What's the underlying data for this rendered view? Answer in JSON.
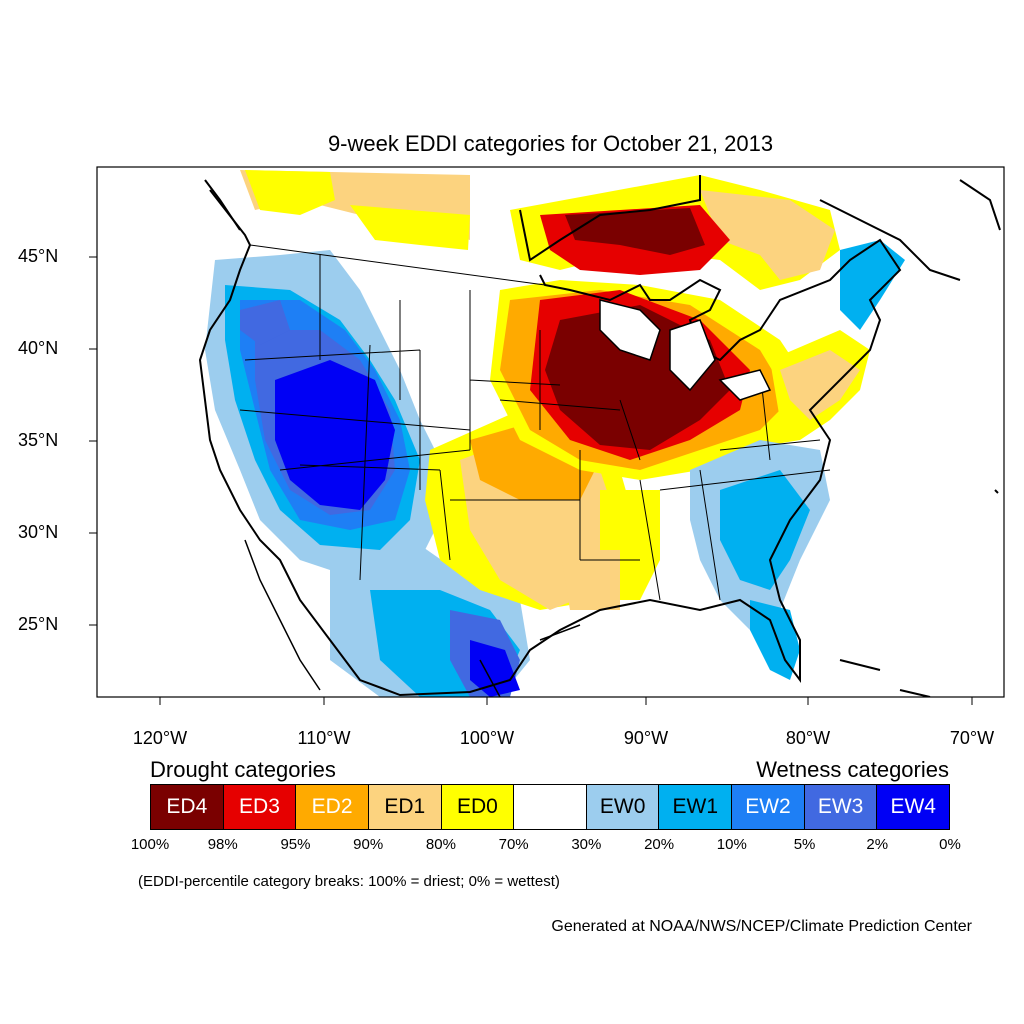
{
  "title": "9-week EDDI categories for October 21, 2013",
  "axes": {
    "lat_ticks": [
      "45°N",
      "40°N",
      "35°N",
      "30°N",
      "25°N"
    ],
    "lon_ticks": [
      "120°W",
      "110°W",
      "100°W",
      "90°W",
      "80°W",
      "70°W"
    ]
  },
  "legend": {
    "drought_heading": "Drought categories",
    "wetness_heading": "Wetness categories",
    "categories": [
      {
        "label": "ED4",
        "color": "#7a0000",
        "text_color": "#ffffff"
      },
      {
        "label": "ED3",
        "color": "#e60000",
        "text_color": "#ffffff"
      },
      {
        "label": "ED2",
        "color": "#ffaa00",
        "text_color": "#ffffff"
      },
      {
        "label": "ED1",
        "color": "#fcd37f",
        "text_color": "#000000"
      },
      {
        "label": "ED0",
        "color": "#ffff00",
        "text_color": "#000000"
      },
      {
        "label": "",
        "color": "#ffffff",
        "text_color": "#000000"
      },
      {
        "label": "EW0",
        "color": "#9ccdee",
        "text_color": "#000000"
      },
      {
        "label": "EW1",
        "color": "#00b0f0",
        "text_color": "#000000"
      },
      {
        "label": "EW2",
        "color": "#1e7ff5",
        "text_color": "#ffffff"
      },
      {
        "label": "EW3",
        "color": "#4169e1",
        "text_color": "#ffffff"
      },
      {
        "label": "EW4",
        "color": "#0000f5",
        "text_color": "#ffffff"
      }
    ],
    "percentiles": [
      "100%",
      "98%",
      "95%",
      "90%",
      "80%",
      "70%",
      "30%",
      "20%",
      "10%",
      "5%",
      "2%",
      "0%"
    ]
  },
  "note": "(EDDI-percentile category breaks: 100% = driest; 0% = wettest)",
  "credit": "Generated at NOAA/NWS/NCEP/Climate Prediction Center"
}
